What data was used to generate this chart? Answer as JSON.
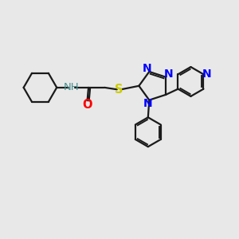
{
  "background_color": "#e8e8e8",
  "bond_color": "#1a1a1a",
  "N_color": "#0000ff",
  "O_color": "#ff0000",
  "S_color": "#cccc00",
  "H_color": "#4a9090",
  "line_width": 1.6,
  "font_size": 10,
  "figsize": [
    3.0,
    3.0
  ],
  "dpi": 100,
  "xlim": [
    0,
    10
  ],
  "ylim": [
    0,
    10
  ]
}
